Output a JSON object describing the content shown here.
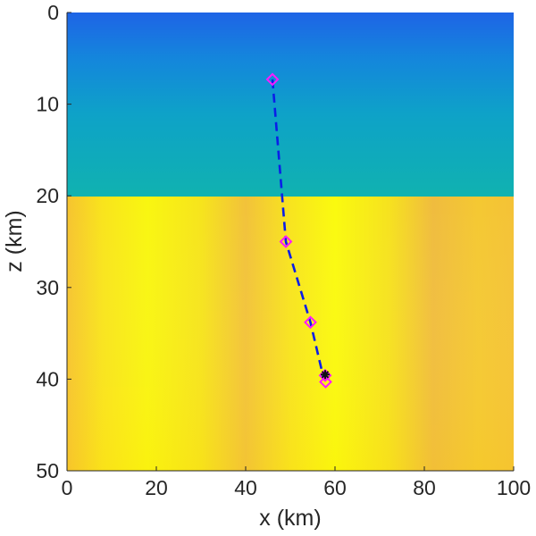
{
  "chart_data": {
    "type": "heatmap",
    "xlabel": "x (km)",
    "ylabel": "z (km)",
    "xlim": [
      0,
      100
    ],
    "ylim": [
      0,
      50
    ],
    "y_reversed": true,
    "xticks": [
      0,
      20,
      40,
      60,
      80,
      100
    ],
    "yticks": [
      0,
      10,
      20,
      30,
      40,
      50
    ],
    "grid": false,
    "colormap": "parula",
    "upper_layer_interface_depth": 20,
    "series": [
      {
        "type": "line",
        "style": "dashed",
        "color": "#0a1ee8",
        "points": [
          {
            "x": 46.0,
            "z": 7.3
          },
          {
            "x": 49.0,
            "z": 25.0
          },
          {
            "x": 54.5,
            "z": 33.8
          },
          {
            "x": 57.5,
            "z": 40.0
          }
        ]
      },
      {
        "type": "markers",
        "marker": "diamond",
        "color": "#ff1aff",
        "points": [
          {
            "x": 46.0,
            "z": 7.3
          },
          {
            "x": 49.0,
            "z": 25.0
          },
          {
            "x": 54.5,
            "z": 33.8
          },
          {
            "x": 57.8,
            "z": 39.6
          },
          {
            "x": 57.9,
            "z": 40.3
          }
        ]
      },
      {
        "type": "markers",
        "marker": "asterisk",
        "color": "#111111",
        "points": [
          {
            "x": 57.8,
            "z": 39.5
          }
        ]
      }
    ]
  }
}
